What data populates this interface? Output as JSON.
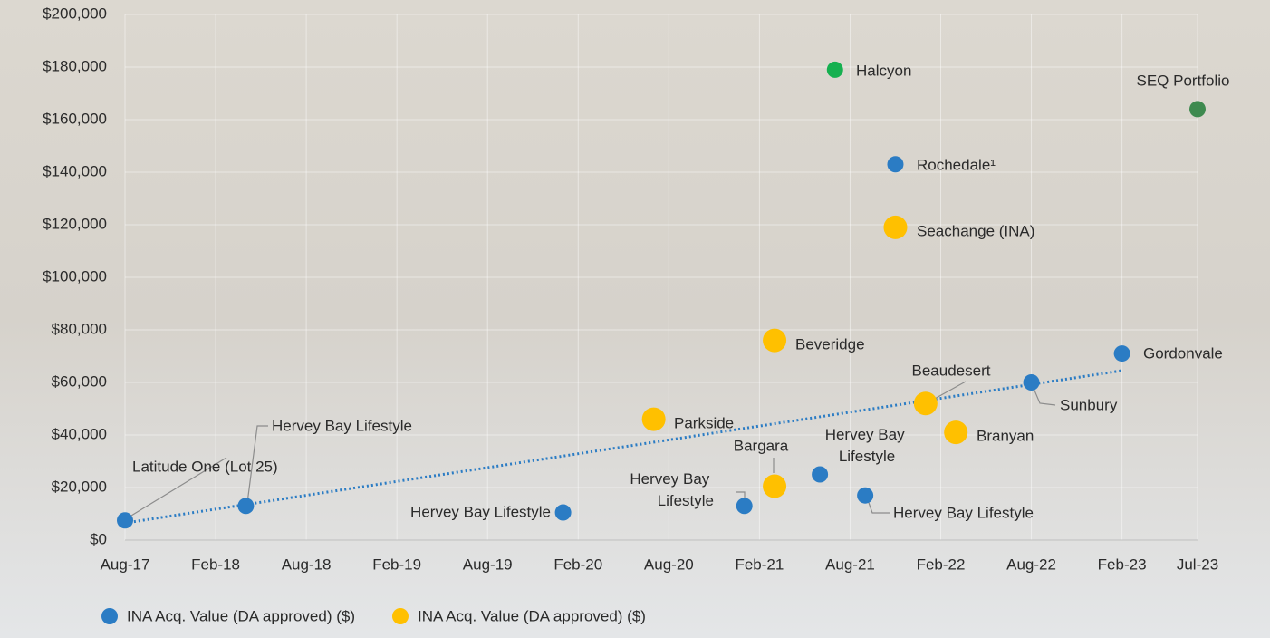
{
  "chart_data": {
    "type": "scatter",
    "xlim": [
      "2017-08",
      "2023-07"
    ],
    "xticks": [
      {
        "value": "2017-08",
        "label": "Aug-17"
      },
      {
        "value": "2018-02",
        "label": "Feb-18"
      },
      {
        "value": "2018-08",
        "label": "Aug-18"
      },
      {
        "value": "2019-02",
        "label": "Feb-19"
      },
      {
        "value": "2019-08",
        "label": "Aug-19"
      },
      {
        "value": "2020-02",
        "label": "Feb-20"
      },
      {
        "value": "2020-08",
        "label": "Aug-20"
      },
      {
        "value": "2021-02",
        "label": "Feb-21"
      },
      {
        "value": "2021-08",
        "label": "Aug-21"
      },
      {
        "value": "2022-02",
        "label": "Feb-22"
      },
      {
        "value": "2022-08",
        "label": "Aug-22"
      },
      {
        "value": "2023-02",
        "label": "Feb-23"
      },
      {
        "value": "2023-07",
        "label": "Jul-23"
      }
    ],
    "ylim": [
      0,
      200000
    ],
    "yticks": [
      {
        "value": 0,
        "label": "$0"
      },
      {
        "value": 20000,
        "label": "$20,000"
      },
      {
        "value": 40000,
        "label": "$40,000"
      },
      {
        "value": 60000,
        "label": "$60,000"
      },
      {
        "value": 80000,
        "label": "$80,000"
      },
      {
        "value": 100000,
        "label": "$100,000"
      },
      {
        "value": 120000,
        "label": "$120,000"
      },
      {
        "value": 140000,
        "label": "$140,000"
      },
      {
        "value": 160000,
        "label": "$160,000"
      },
      {
        "value": 180000,
        "label": "$180,000"
      },
      {
        "value": 200000,
        "label": "$200,000"
      }
    ],
    "grid": true,
    "legend": "bottom",
    "series": [
      {
        "name": "INA Acq. Value (DA approved) ($)",
        "color": "#2b7cc4",
        "size": 9,
        "x": [
          "2017-08",
          "2018-04",
          "2020-01",
          "2021-01",
          "2021-06",
          "2021-09",
          "2021-11",
          "2022-08",
          "2023-02"
        ],
        "values": [
          7500,
          13000,
          10500,
          13000,
          25000,
          17000,
          143000,
          60000,
          71000
        ],
        "labels": [
          "Latitude One (Lot 25)",
          "Hervey Bay Lifestyle",
          "Hervey Bay Lifestyle",
          "Hervey Bay Lifestyle",
          "Hervey Bay Lifestyle",
          "Hervey Bay Lifestyle",
          "Rochedale¹",
          "Sunbury",
          "Gordonvale"
        ]
      },
      {
        "name": "INA Acq. Value (DA approved) ($)",
        "color": "#ffc000",
        "size": 13,
        "x": [
          "2020-07",
          "2021-03",
          "2021-03",
          "2021-11",
          "2022-01",
          "2022-03"
        ],
        "values": [
          46000,
          20500,
          76000,
          119000,
          52000,
          41000
        ],
        "labels": [
          "Parkside",
          "Bargara",
          "Beveridge",
          "Seachange (INA)",
          "Beaudesert",
          "Branyan"
        ]
      },
      {
        "color": "#16b050",
        "size": 9,
        "x": [
          "2021-07"
        ],
        "values": [
          179000
        ],
        "labels": [
          "Halcyon"
        ]
      },
      {
        "color": "#3e8a4f",
        "size": 9,
        "x": [
          "2023-07"
        ],
        "values": [
          164000
        ],
        "labels": [
          "SEQ Portfolio"
        ]
      }
    ],
    "trendline": {
      "color": "#2b7cc4",
      "x": [
        "2017-08",
        "2023-02"
      ],
      "values": [
        6500,
        64500
      ]
    }
  }
}
